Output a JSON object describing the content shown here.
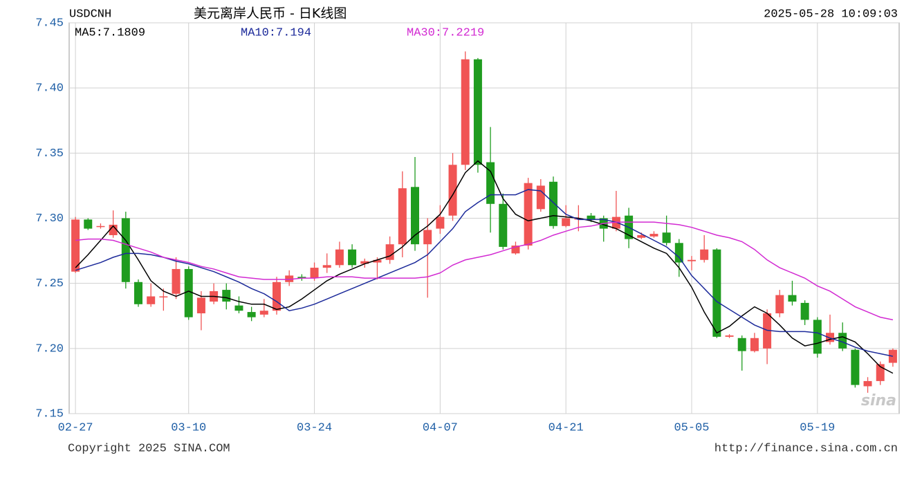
{
  "chart_data": {
    "type": "candlestick",
    "symbol": "USDCNH",
    "title": "美元离岸人民币 - 日K线图",
    "timestamp": "2025-05-28 10:09:03",
    "copyright": "Copyright 2025 SINA.COM",
    "source_url": "http://finance.sina.com.cn",
    "watermark": "sina",
    "up_color": "#f05454",
    "down_color": "#1f9c1f",
    "grid": true,
    "ylim": [
      7.15,
      7.45
    ],
    "yticks": [
      7.15,
      {
        "value": 7.2,
        "label": "7.20"
      },
      7.25,
      {
        "value": 7.3,
        "label": "7.30"
      },
      7.35,
      {
        "value": 7.4,
        "label": "7.40"
      },
      7.45
    ],
    "categories": [
      "02-27",
      null,
      null,
      null,
      null,
      null,
      null,
      null,
      null,
      "03-10",
      null,
      null,
      null,
      null,
      null,
      null,
      null,
      null,
      null,
      "03-24",
      null,
      null,
      null,
      null,
      null,
      null,
      null,
      null,
      null,
      "04-07",
      null,
      null,
      null,
      null,
      null,
      null,
      null,
      null,
      null,
      "04-21",
      null,
      null,
      null,
      null,
      null,
      null,
      null,
      null,
      null,
      "05-05",
      null,
      null,
      null,
      null,
      null,
      null,
      null,
      null,
      null,
      "05-19",
      null,
      null,
      null,
      null,
      null,
      null
    ],
    "open": [
      7.259,
      7.299,
      7.294,
      7.287,
      7.3,
      7.251,
      7.234,
      7.24,
      7.242,
      7.261,
      7.227,
      7.236,
      7.245,
      7.233,
      7.228,
      7.226,
      7.229,
      7.251,
      7.255,
      7.254,
      7.262,
      7.264,
      7.276,
      7.265,
      7.266,
      7.268,
      7.28,
      7.324,
      7.28,
      7.292,
      7.302,
      7.341,
      7.422,
      7.343,
      7.311,
      7.273,
      7.279,
      7.307,
      7.328,
      7.294,
      7.299,
      7.302,
      7.3,
      7.292,
      7.302,
      7.285,
      7.286,
      7.289,
      7.281,
      7.267,
      7.268,
      7.276,
      7.209,
      7.208,
      7.198,
      7.2,
      7.227,
      7.241,
      7.235,
      7.222,
      7.205,
      7.212,
      7.199,
      7.171,
      7.175,
      7.189
    ],
    "high": [
      7.301,
      7.3,
      7.296,
      7.306,
      7.305,
      7.253,
      7.25,
      7.246,
      7.27,
      7.263,
      7.244,
      7.25,
      7.25,
      7.24,
      7.232,
      7.238,
      7.255,
      7.26,
      7.257,
      7.266,
      7.273,
      7.282,
      7.28,
      7.269,
      7.27,
      7.286,
      7.336,
      7.347,
      7.3,
      7.31,
      7.35,
      7.428,
      7.423,
      7.37,
      7.319,
      7.282,
      7.331,
      7.33,
      7.332,
      7.31,
      7.31,
      7.304,
      7.302,
      7.321,
      7.308,
      7.289,
      7.29,
      7.302,
      7.284,
      7.271,
      7.287,
      7.277,
      7.211,
      7.21,
      7.212,
      7.23,
      7.245,
      7.252,
      7.237,
      7.224,
      7.226,
      7.22,
      7.2,
      7.178,
      7.19,
      7.2
    ],
    "low": [
      7.258,
      7.291,
      7.292,
      7.285,
      7.246,
      7.232,
      7.232,
      7.229,
      7.238,
      7.222,
      7.214,
      7.234,
      7.23,
      7.227,
      7.221,
      7.224,
      7.226,
      7.248,
      7.252,
      7.252,
      7.258,
      7.262,
      7.262,
      7.262,
      7.253,
      7.265,
      7.27,
      7.275,
      7.239,
      7.288,
      7.298,
      7.337,
      7.335,
      7.289,
      7.276,
      7.272,
      7.276,
      7.305,
      7.292,
      7.293,
      7.29,
      7.297,
      7.282,
      7.29,
      7.277,
      7.284,
      7.285,
      7.279,
      7.255,
      7.26,
      7.266,
      7.208,
      7.208,
      7.183,
      7.197,
      7.188,
      7.224,
      7.233,
      7.218,
      7.193,
      7.203,
      7.198,
      7.17,
      7.166,
      7.172,
      7.186
    ],
    "close": [
      7.299,
      7.292,
      7.294,
      7.295,
      7.251,
      7.234,
      7.24,
      7.24,
      7.261,
      7.224,
      7.239,
      7.244,
      7.236,
      7.229,
      7.224,
      7.229,
      7.251,
      7.256,
      7.254,
      7.262,
      7.264,
      7.276,
      7.264,
      7.267,
      7.268,
      7.28,
      7.323,
      7.28,
      7.291,
      7.301,
      7.341,
      7.422,
      7.341,
      7.311,
      7.278,
      7.279,
      7.327,
      7.325,
      7.294,
      7.3,
      7.3,
      7.299,
      7.292,
      7.301,
      7.284,
      7.287,
      7.288,
      7.281,
      7.266,
      7.268,
      7.276,
      7.209,
      7.21,
      7.198,
      7.208,
      7.227,
      7.241,
      7.236,
      7.222,
      7.196,
      7.212,
      7.2,
      7.172,
      7.175,
      7.188,
      7.199
    ],
    "lines": [
      {
        "name": "MA5:7.1809",
        "color": "#000000",
        "values": [
          7.262,
          7.272,
          7.283,
          7.294,
          7.283,
          7.268,
          7.252,
          7.244,
          7.24,
          7.244,
          7.24,
          7.24,
          7.239,
          7.236,
          7.234,
          7.234,
          7.23,
          7.232,
          7.238,
          7.245,
          7.252,
          7.257,
          7.261,
          7.265,
          7.268,
          7.271,
          7.278,
          7.287,
          7.294,
          7.303,
          7.318,
          7.335,
          7.344,
          7.336,
          7.315,
          7.303,
          7.298,
          7.3,
          7.302,
          7.301,
          7.3,
          7.298,
          7.295,
          7.292,
          7.287,
          7.282,
          7.277,
          7.273,
          7.262,
          7.247,
          7.228,
          7.212,
          7.217,
          7.225,
          7.232,
          7.227,
          7.218,
          7.208,
          7.202,
          7.204,
          7.207,
          7.209,
          7.205,
          7.196,
          7.186,
          7.181
        ]
      },
      {
        "name": "MA10:7.194",
        "color": "#1c2a9a",
        "values": [
          7.26,
          7.263,
          7.266,
          7.27,
          7.273,
          7.273,
          7.272,
          7.27,
          7.267,
          7.265,
          7.262,
          7.259,
          7.255,
          7.251,
          7.246,
          7.242,
          7.236,
          7.229,
          7.231,
          7.234,
          7.238,
          7.242,
          7.246,
          7.25,
          7.254,
          7.258,
          7.262,
          7.266,
          7.272,
          7.282,
          7.292,
          7.305,
          7.312,
          7.318,
          7.318,
          7.318,
          7.322,
          7.321,
          7.312,
          7.303,
          7.299,
          7.299,
          7.299,
          7.297,
          7.293,
          7.288,
          7.283,
          7.278,
          7.27,
          7.256,
          7.246,
          7.236,
          7.23,
          7.224,
          7.218,
          7.214,
          7.213,
          7.213,
          7.213,
          7.212,
          7.208,
          7.205,
          7.201,
          7.198,
          7.196,
          7.194
        ]
      },
      {
        "name": "MA30:7.2219",
        "color": "#d22ad2",
        "values": [
          7.283,
          7.284,
          7.284,
          7.283,
          7.28,
          7.277,
          7.274,
          7.27,
          7.268,
          7.266,
          7.263,
          7.261,
          7.258,
          7.255,
          7.254,
          7.253,
          7.253,
          7.253,
          7.254,
          7.254,
          7.255,
          7.255,
          7.255,
          7.254,
          7.254,
          7.254,
          7.254,
          7.254,
          7.255,
          7.258,
          7.264,
          7.268,
          7.27,
          7.272,
          7.275,
          7.278,
          7.28,
          7.283,
          7.287,
          7.29,
          7.293,
          7.294,
          7.296,
          7.297,
          7.297,
          7.297,
          7.297,
          7.296,
          7.295,
          7.293,
          7.29,
          7.287,
          7.285,
          7.282,
          7.276,
          7.268,
          7.262,
          7.258,
          7.254,
          7.248,
          7.244,
          7.238,
          7.232,
          7.228,
          7.224,
          7.222
        ]
      }
    ]
  }
}
